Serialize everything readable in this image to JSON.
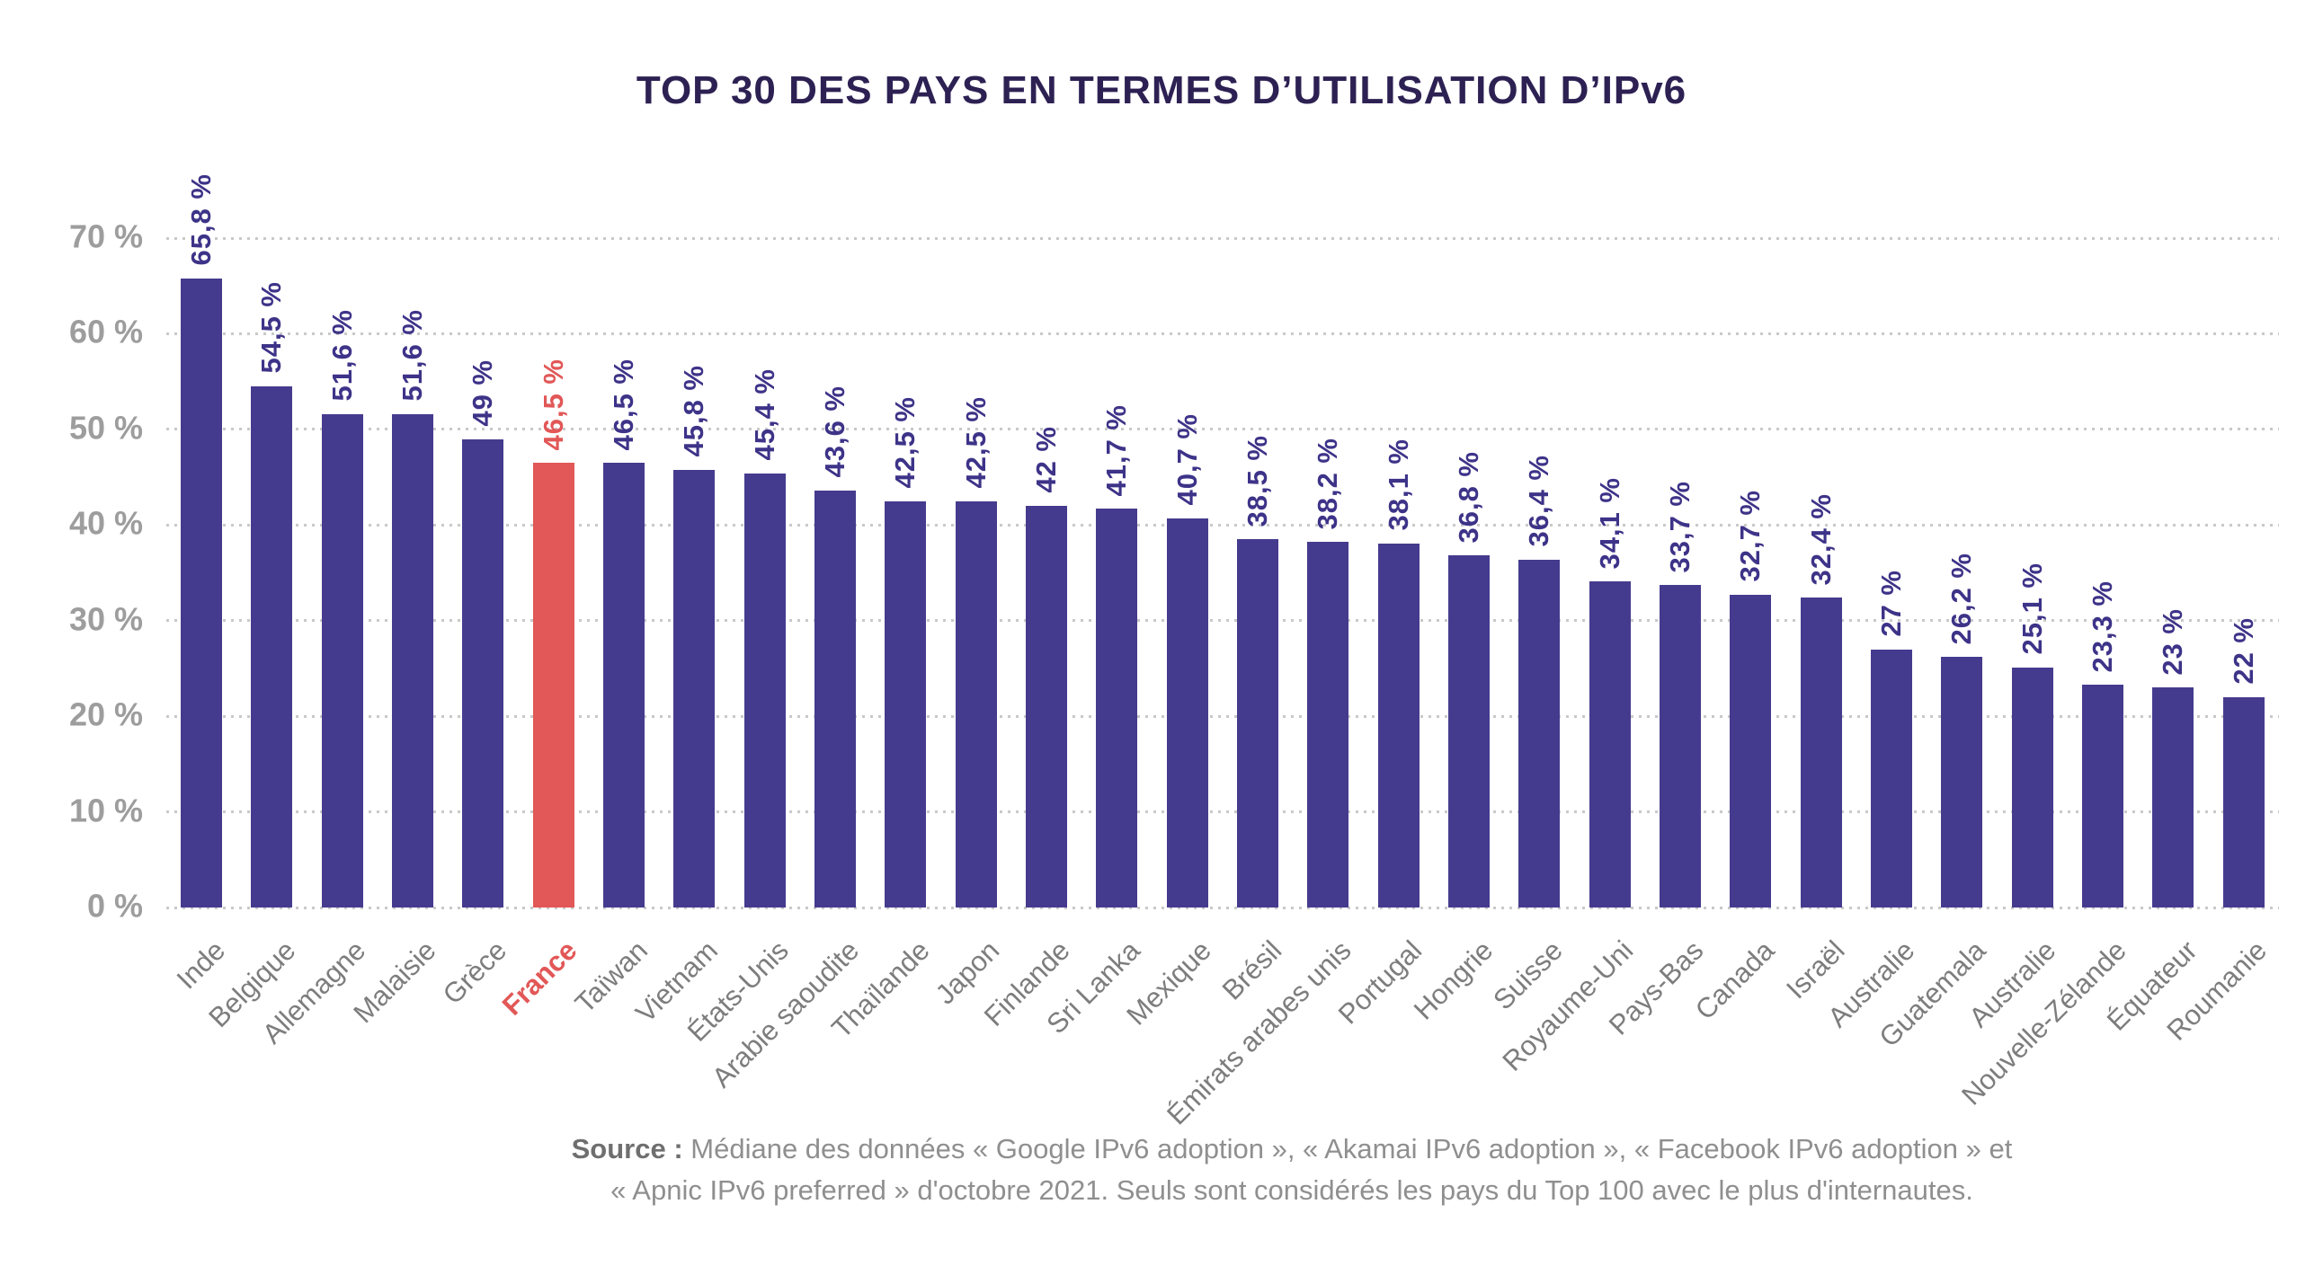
{
  "chart_data": {
    "type": "bar",
    "title": "TOP 30 DES PAYS EN TERMES D’UTILISATION D’IPv6",
    "categories": [
      "Inde",
      "Belgique",
      "Allemagne",
      "Malaisie",
      "Grèce",
      "France",
      "Taïwan",
      "Vietnam",
      "États-Unis",
      "Arabie saoudite",
      "Thaïlande",
      "Japon",
      "Finlande",
      "Sri Lanka",
      "Mexique",
      "Brésil",
      "Émirats arabes unis",
      "Portugal",
      "Hongrie",
      "Suisse",
      "Royaume-Uni",
      "Pays-Bas",
      "Canada",
      "Israël",
      "Australie",
      "Guatemala",
      "Australie",
      "Nouvelle-Zélande",
      "Équateur",
      "Roumanie"
    ],
    "values": [
      65.8,
      54.5,
      51.6,
      51.6,
      49,
      46.5,
      46.5,
      45.8,
      45.4,
      43.6,
      42.5,
      42.5,
      42,
      41.7,
      40.7,
      38.5,
      38.2,
      38.1,
      36.8,
      36.4,
      34.1,
      33.7,
      32.7,
      32.4,
      27,
      26.2,
      25.1,
      23.3,
      23,
      22
    ],
    "value_labels": [
      "65,8 %",
      "54,5 %",
      "51,6 %",
      "51,6 %",
      "49 %",
      "46,5 %",
      "46,5 %",
      "45,8 %",
      "45,4 %",
      "43,6 %",
      "42,5 %",
      "42,5 %",
      "42 %",
      "41,7 %",
      "40,7 %",
      "38,5 %",
      "38,2 %",
      "38,1 %",
      "36,8 %",
      "36,4 %",
      "34,1 %",
      "33,7 %",
      "32,7 %",
      "32,4 %",
      "27 %",
      "26,2 %",
      "25,1 %",
      "23,3 %",
      "23 %",
      "22 %"
    ],
    "highlight_index": 5,
    "highlight_category": "France",
    "y_ticks": [
      "70 %",
      "60 %",
      "50 %",
      "40 %",
      "30 %",
      "20 %",
      "10 %",
      "0 %"
    ],
    "ylim": [
      0,
      70
    ],
    "xlabel": "",
    "ylabel": "",
    "grid": "horizontal dotted",
    "legend": "none",
    "colors": {
      "bar": "#453b8e",
      "highlight": "#e25757",
      "value_text": "#3d3388",
      "title_text": "#2d2153",
      "axis_text": "#9d9d9d",
      "country_text": "#7d7d7d",
      "gridline": "#c9c9c9"
    },
    "source": {
      "prefix": "Source :",
      "line1": " Médiane des données « Google IPv6 adoption », « Akamai IPv6 adoption », « Facebook IPv6 adoption » et",
      "line2": "« Apnic IPv6 preferred » d'octobre 2021. Seuls sont considérés les pays du Top 100 avec le plus d'internautes."
    }
  }
}
